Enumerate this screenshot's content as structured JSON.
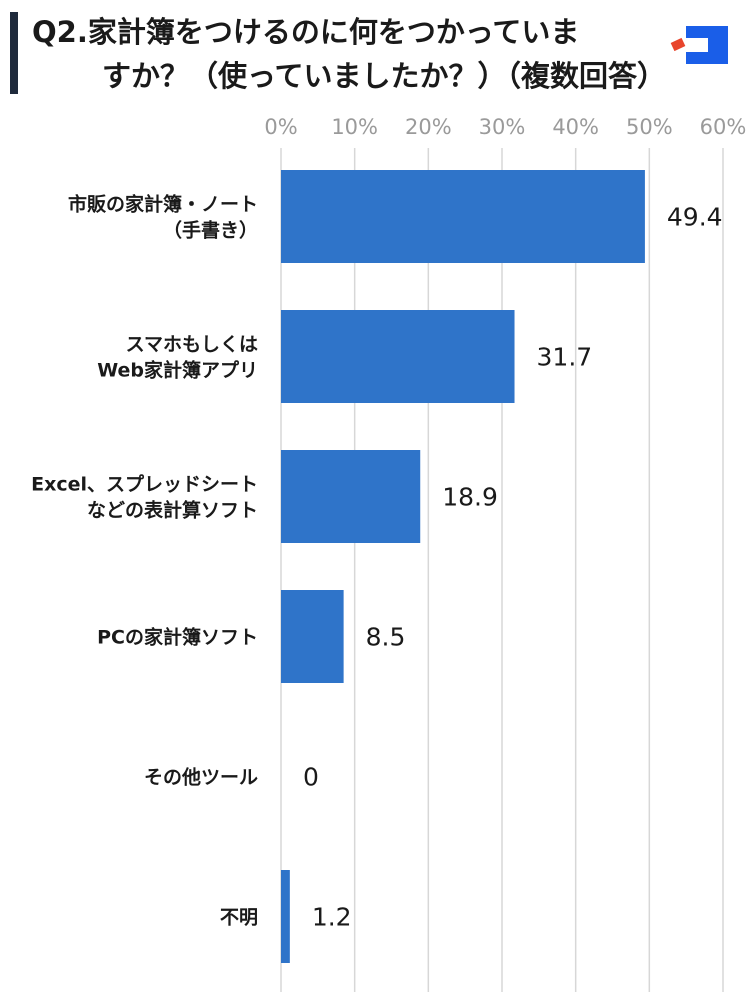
{
  "title": {
    "line1": "Q2.家計簿をつけるのに何をつかっていま",
    "line2": "すか？（使っていましたか？）（複数回答）"
  },
  "colors": {
    "bar": "#2f74c9",
    "grid": "#d7d7d7",
    "title_bar": "#1f2a3c",
    "logo_blue": "#1a5ee8",
    "logo_red": "#e8452c"
  },
  "chart_data": {
    "type": "bar",
    "orientation": "horizontal",
    "title": "Q2.家計簿をつけるのに何をつかっていますか？（使っていましたか？）（複数回答）",
    "xlim": [
      0,
      60
    ],
    "ticks": [
      "0%",
      "10%",
      "20%",
      "30%",
      "40%",
      "50%",
      "60%"
    ],
    "grid": true,
    "categories": [
      [
        "市販の家計簿・ノート",
        "（手書き）"
      ],
      [
        "スマホもしくは",
        "Web家計簿アプリ"
      ],
      [
        "Excel、スプレッドシート",
        "などの表計算ソフト"
      ],
      [
        "PCの家計簿ソフト"
      ],
      [
        "その他ツール"
      ],
      [
        "不明"
      ]
    ],
    "values": [
      49.4,
      31.7,
      18.9,
      8.5,
      0,
      1.2
    ],
    "value_labels": [
      "49.4",
      "31.7",
      "18.9",
      "8.5",
      "0",
      "1.2"
    ]
  }
}
